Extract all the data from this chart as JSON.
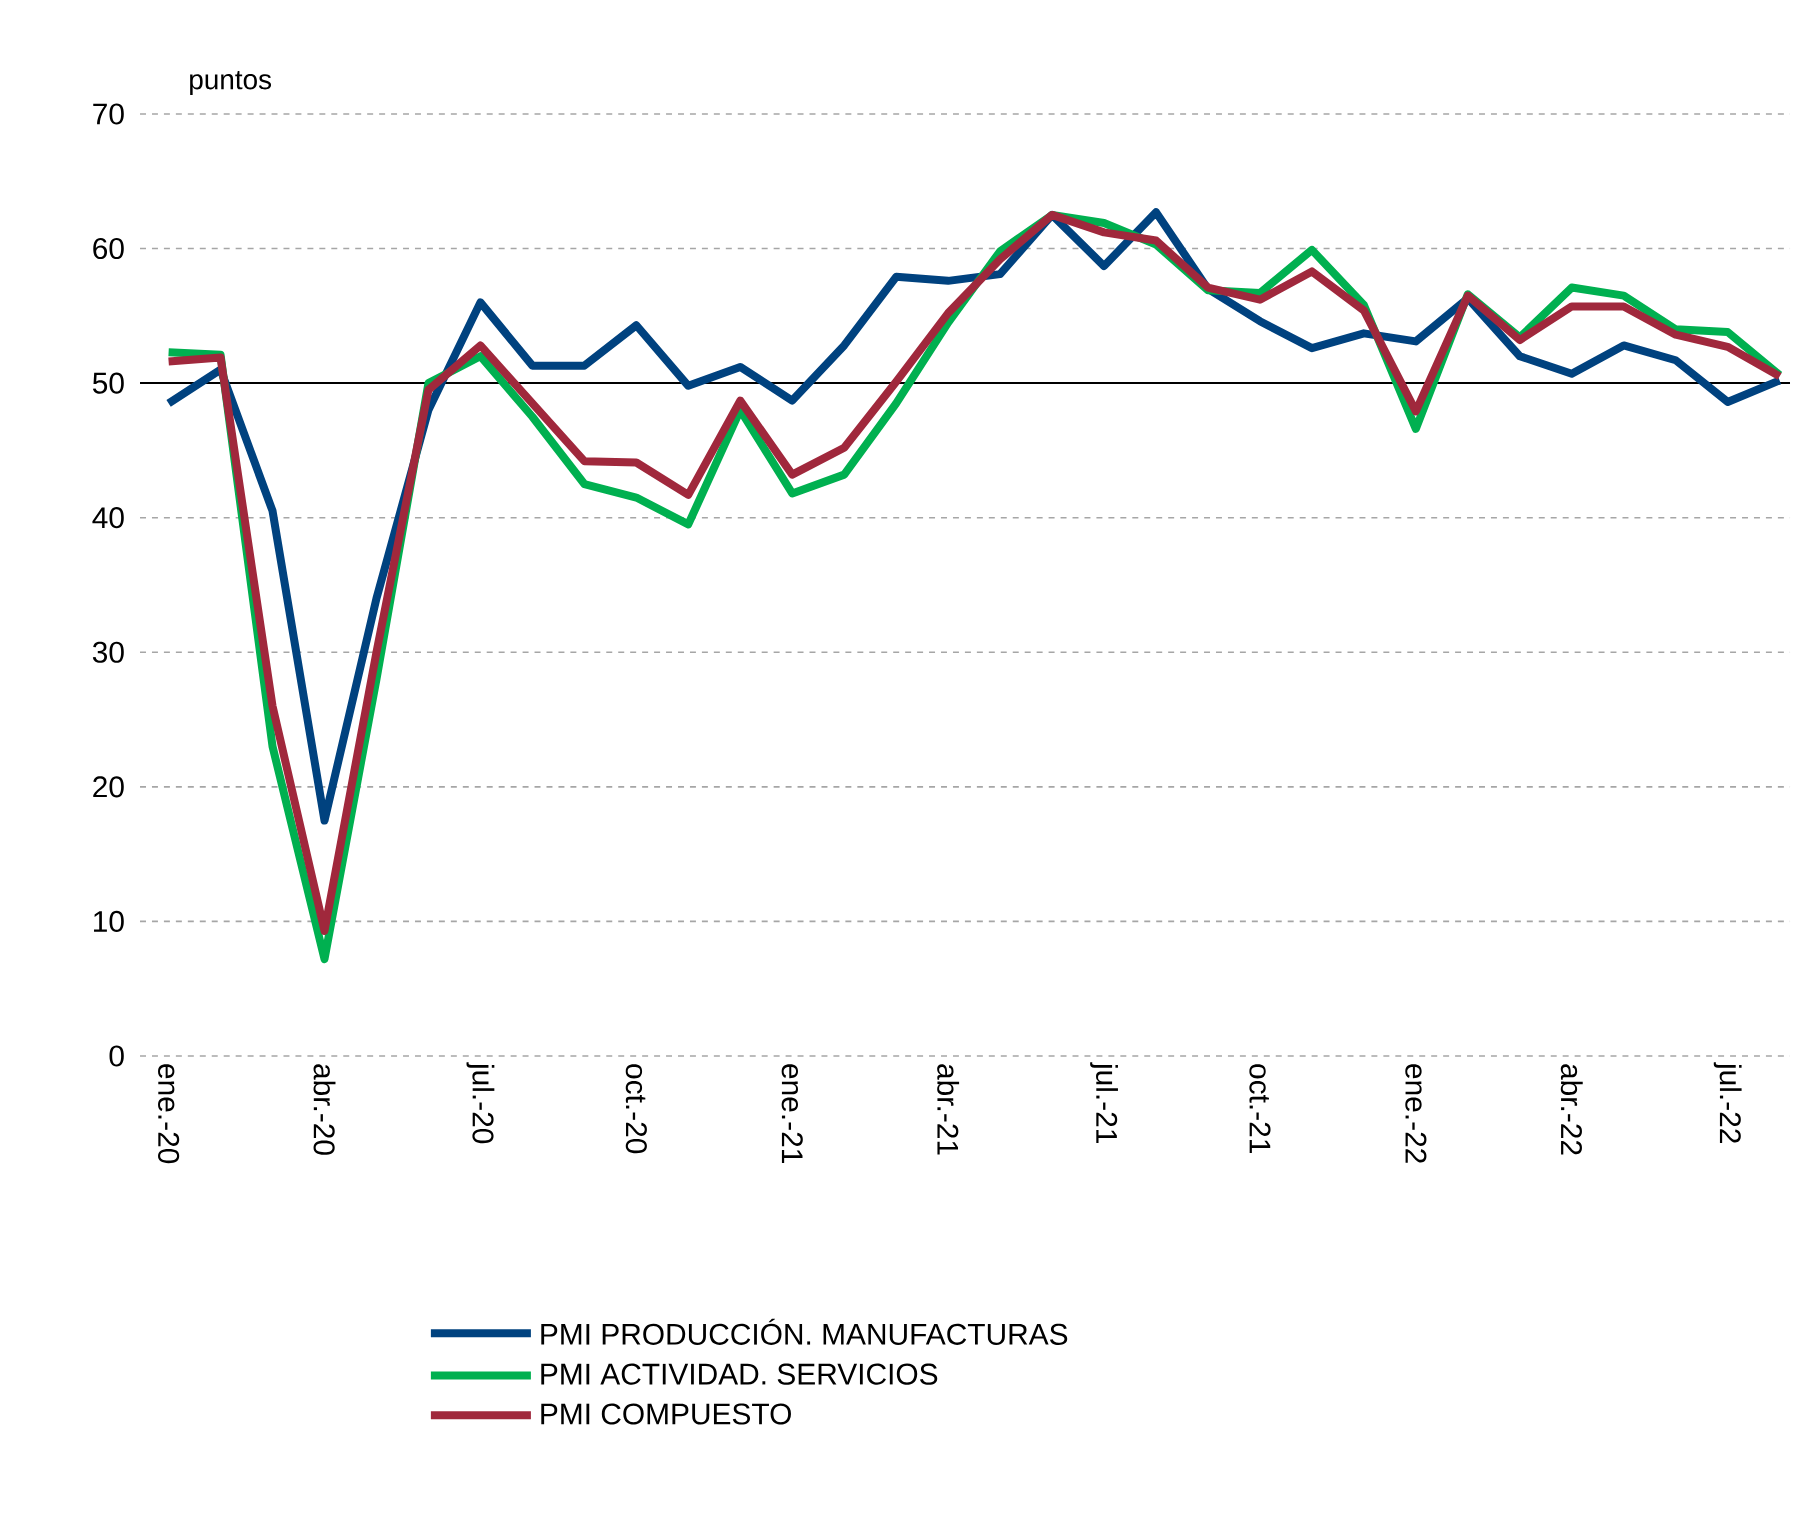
{
  "chart_data": {
    "type": "line",
    "ylabel": "puntos",
    "categories": [
      "ene.-20",
      null,
      null,
      "abr.-20",
      null,
      null,
      "jul.-20",
      null,
      null,
      "oct.-20",
      null,
      null,
      "ene.-21",
      null,
      null,
      "abr.-21",
      null,
      null,
      "jul.-21",
      null,
      null,
      "oct.-21",
      null,
      null,
      "ene.-22",
      null,
      null,
      "abr.-22",
      null,
      null,
      "jul.-22",
      null
    ],
    "series": [
      {
        "name": "PMI PRODUCCIÓN. MANUFACTURAS",
        "color": "#00427f",
        "values": [
          48.5,
          51,
          40.5,
          17.5,
          34,
          48,
          56,
          51.3,
          51.3,
          54.3,
          49.8,
          51.2,
          48.7,
          52.8,
          57.9,
          57.6,
          58.1,
          62.5,
          58.7,
          62.7,
          57,
          54.6,
          52.6,
          53.7,
          53.1,
          56.3,
          52,
          50.7,
          52.8,
          51.7,
          48.6,
          50.2
        ]
      },
      {
        "name": "PMI ACTIVIDAD. SERVICIOS",
        "color": "#00b050",
        "values": [
          52.3,
          52.1,
          23,
          7.2,
          28,
          50,
          52,
          47.5,
          42.5,
          41.5,
          39.5,
          48,
          41.8,
          43.2,
          48.5,
          54.5,
          59.8,
          62.5,
          61.9,
          60.3,
          56.9,
          56.7,
          59.9,
          55.8,
          46.6,
          56.6,
          53.4,
          57.1,
          56.5,
          54,
          53.8,
          50.6
        ]
      },
      {
        "name": "PMI COMPUESTO",
        "color": "#a0283c",
        "values": [
          51.6,
          51.9,
          26,
          9.3,
          30,
          49.5,
          52.8,
          48.5,
          44.2,
          44.1,
          41.7,
          48.7,
          43.2,
          45.2,
          50.1,
          55.2,
          59.2,
          62.5,
          61.2,
          60.6,
          57.1,
          56.2,
          58.3,
          55.4,
          47.9,
          56.5,
          53.2,
          55.7,
          55.7,
          53.6,
          52.7,
          50.5
        ]
      }
    ],
    "ylim": [
      0,
      70
    ],
    "yticks": [
      0,
      10,
      20,
      30,
      40,
      50,
      60,
      70
    ],
    "grid": "y",
    "legend": "bottom",
    "line_style": "solid",
    "ref_lines": [
      {
        "axis": "y",
        "value": 50,
        "color": "#000000"
      }
    ]
  }
}
